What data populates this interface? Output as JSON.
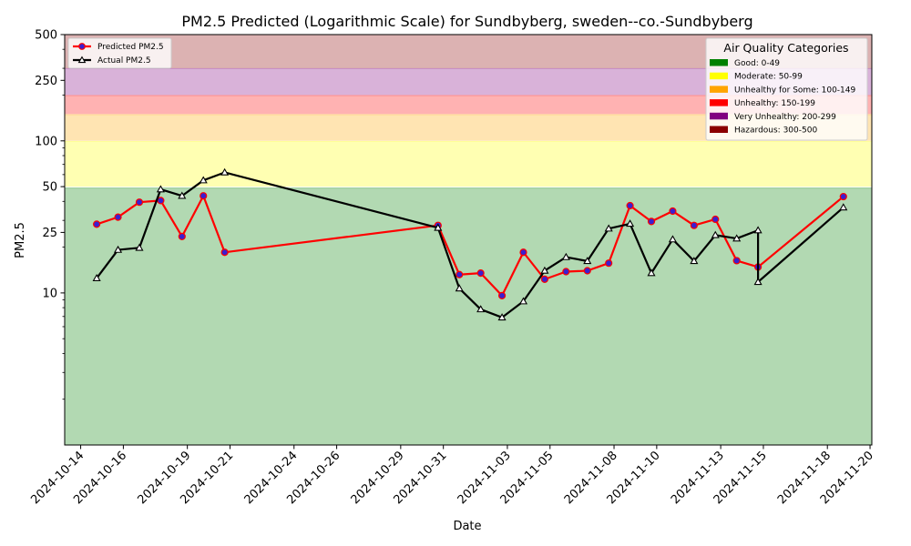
{
  "chart_data": {
    "type": "line",
    "title": "PM2.5 Predicted (Logarithmic Scale) for Sundbyberg, sweden--co.-Sundbyberg",
    "xlabel": "Date",
    "ylabel": "PM2.5",
    "yscale": "log",
    "ylim": [
      1,
      500
    ],
    "xlim": [
      "2024-10-13 06:00",
      "2024-11-20 02:00"
    ],
    "x_ticks": [
      "2024-10-14",
      "2024-10-16",
      "2024-10-19",
      "2024-10-21",
      "2024-10-24",
      "2024-10-26",
      "2024-10-29",
      "2024-10-31",
      "2024-11-03",
      "2024-11-05",
      "2024-11-08",
      "2024-11-10",
      "2024-11-13",
      "2024-11-15",
      "2024-11-18",
      "2024-11-20"
    ],
    "y_ticks": [
      {
        "value": 10,
        "label": "10"
      },
      {
        "value": 25,
        "label": "25"
      },
      {
        "value": 50,
        "label": "50"
      },
      {
        "value": 100,
        "label": "100"
      },
      {
        "value": 250,
        "label": "250"
      },
      {
        "value": 500,
        "label": "500"
      }
    ],
    "grid": false,
    "legend_placement": "top-left",
    "series": [
      {
        "name": "Predicted PM2.5",
        "color": "#ff0000",
        "marker": "circle",
        "marker_face": "#3a1fd0",
        "points": [
          [
            "2024-10-14 18:00",
            28.3
          ],
          [
            "2024-10-15 18:00",
            31.5
          ],
          [
            "2024-10-16 18:00",
            39.5
          ],
          [
            "2024-10-17 18:00",
            40.5
          ],
          [
            "2024-10-18 18:00",
            23.5
          ],
          [
            "2024-10-19 18:00",
            43.5
          ],
          [
            "2024-10-20 18:00",
            18.5
          ],
          [
            "2024-10-30 18:00",
            27.8
          ],
          [
            "2024-10-31 18:00",
            13.2
          ],
          [
            "2024-11-01 18:00",
            13.5
          ],
          [
            "2024-11-02 18:00",
            9.6
          ],
          [
            "2024-11-03 18:00",
            18.5
          ],
          [
            "2024-11-04 18:00",
            12.3
          ],
          [
            "2024-11-05 18:00",
            13.8
          ],
          [
            "2024-11-06 18:00",
            14.0
          ],
          [
            "2024-11-07 18:00",
            15.7
          ],
          [
            "2024-11-08 18:00",
            37.5
          ],
          [
            "2024-11-09 18:00",
            29.5
          ],
          [
            "2024-11-10 18:00",
            34.5
          ],
          [
            "2024-11-11 18:00",
            27.8
          ],
          [
            "2024-11-12 18:00",
            30.5
          ],
          [
            "2024-11-13 18:00",
            16.3
          ],
          [
            "2024-11-14 18:00",
            14.8
          ],
          [
            "2024-11-18 18:00",
            43.0
          ]
        ]
      },
      {
        "name": "Actual PM2.5",
        "color": "#000000",
        "marker": "triangle",
        "marker_face": "#ffffff",
        "points": [
          [
            "2024-10-14 18:00",
            12.5
          ],
          [
            "2024-10-15 18:00",
            19.2
          ],
          [
            "2024-10-16 18:00",
            19.8
          ],
          [
            "2024-10-17 18:00",
            48.0
          ],
          [
            "2024-10-18 18:00",
            43.5
          ],
          [
            "2024-10-19 18:00",
            55.0
          ],
          [
            "2024-10-20 18:00",
            62.0
          ],
          [
            "2024-10-30 18:00",
            26.8
          ],
          [
            "2024-10-31 18:00",
            10.7
          ],
          [
            "2024-11-01 18:00",
            7.8
          ],
          [
            "2024-11-02 18:00",
            6.9
          ],
          [
            "2024-11-03 18:00",
            8.8
          ],
          [
            "2024-11-04 18:00",
            14.0
          ],
          [
            "2024-11-05 18:00",
            17.2
          ],
          [
            "2024-11-06 18:00",
            16.2
          ],
          [
            "2024-11-07 18:00",
            26.5
          ],
          [
            "2024-11-08 18:00",
            28.5
          ],
          [
            "2024-11-09 18:00",
            13.5
          ],
          [
            "2024-11-10 18:00",
            22.5
          ],
          [
            "2024-11-11 18:00",
            16.2
          ],
          [
            "2024-11-12 18:00",
            24.0
          ],
          [
            "2024-11-13 18:00",
            22.8
          ],
          [
            "2024-11-14 18:00",
            25.8
          ],
          [
            "2024-11-14 18:00",
            11.8
          ],
          [
            "2024-11-18 18:00",
            36.5
          ]
        ]
      }
    ],
    "categories_legend": {
      "title": "Air Quality Categories",
      "placement": "top-right",
      "items": [
        {
          "label": "Good: 0-49",
          "color": "#008000"
        },
        {
          "label": "Moderate: 50-99",
          "color": "#ffff00"
        },
        {
          "label": "Unhealthy for Some: 100-149",
          "color": "#ffa500"
        },
        {
          "label": "Unhealthy: 150-199",
          "color": "#ff0000"
        },
        {
          "label": "Very Unhealthy: 200-299",
          "color": "#800080"
        },
        {
          "label": "Hazardous: 300-500",
          "color": "#8b0000"
        }
      ]
    },
    "bands": [
      {
        "from": 1,
        "to": 49,
        "color": "#008000"
      },
      {
        "from": 50,
        "to": 99,
        "color": "#ffff00"
      },
      {
        "from": 100,
        "to": 149,
        "color": "#ffa500"
      },
      {
        "from": 150,
        "to": 199,
        "color": "#ff0000"
      },
      {
        "from": 200,
        "to": 299,
        "color": "#800080"
      },
      {
        "from": 300,
        "to": 500,
        "color": "#8b0000"
      }
    ]
  }
}
